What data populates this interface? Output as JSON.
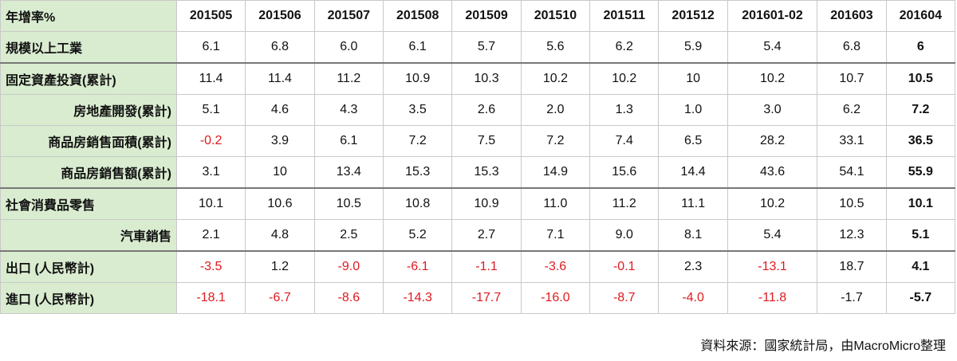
{
  "table": {
    "corner": "年增率%",
    "columns": [
      "201505",
      "201506",
      "201507",
      "201508",
      "201509",
      "201510",
      "201511",
      "201512",
      "201601-02",
      "201603",
      "201604"
    ],
    "rows": [
      {
        "label": "規模以上工業",
        "align": "left",
        "values": [
          "6.1",
          "6.8",
          "6.0",
          "6.1",
          "5.7",
          "5.6",
          "6.2",
          "5.9",
          "5.4",
          "6.8",
          "6"
        ],
        "neg": []
      },
      {
        "label": "固定資產投資(累計)",
        "align": "left",
        "group_top": true,
        "values": [
          "11.4",
          "11.4",
          "11.2",
          "10.9",
          "10.3",
          "10.2",
          "10.2",
          "10",
          "10.2",
          "10.7",
          "10.5"
        ],
        "neg": []
      },
      {
        "label": "房地產開發(累計)",
        "align": "sub",
        "values": [
          "5.1",
          "4.6",
          "4.3",
          "3.5",
          "2.6",
          "2.0",
          "1.3",
          "1.0",
          "3.0",
          "6.2",
          "7.2"
        ],
        "neg": []
      },
      {
        "label": "商品房銷售面積(累計)",
        "align": "sub",
        "values": [
          "-0.2",
          "3.9",
          "6.1",
          "7.2",
          "7.5",
          "7.2",
          "7.4",
          "6.5",
          "28.2",
          "33.1",
          "36.5"
        ],
        "neg": [
          0
        ]
      },
      {
        "label": "商品房銷售額(累計)",
        "align": "sub",
        "values": [
          "3.1",
          "10",
          "13.4",
          "15.3",
          "15.3",
          "14.9",
          "15.6",
          "14.4",
          "43.6",
          "54.1",
          "55.9"
        ],
        "neg": []
      },
      {
        "label": "社會消費品零售",
        "align": "left",
        "group_top": true,
        "values": [
          "10.1",
          "10.6",
          "10.5",
          "10.8",
          "10.9",
          "11.0",
          "11.2",
          "11.1",
          "10.2",
          "10.5",
          "10.1"
        ],
        "neg": []
      },
      {
        "label": "汽車銷售",
        "align": "sub",
        "values": [
          "2.1",
          "4.8",
          "2.5",
          "5.2",
          "2.7",
          "7.1",
          "9.0",
          "8.1",
          "5.4",
          "12.3",
          "5.1"
        ],
        "neg": []
      },
      {
        "label": "出口 (人民幣計)",
        "align": "left",
        "group_top": true,
        "values": [
          "-3.5",
          "1.2",
          "-9.0",
          "-6.1",
          "-1.1",
          "-3.6",
          "-0.1",
          "2.3",
          "-13.1",
          "18.7",
          "4.1"
        ],
        "neg": [
          0,
          2,
          3,
          4,
          5,
          6,
          8
        ]
      },
      {
        "label": "進口 (人民幣計)",
        "align": "left",
        "values": [
          "-18.1",
          "-6.7",
          "-8.6",
          "-14.3",
          "-17.7",
          "-16.0",
          "-8.7",
          "-4.0",
          "-11.8",
          "-1.7",
          "-5.7"
        ],
        "neg": [
          0,
          1,
          2,
          3,
          4,
          5,
          6,
          7,
          8
        ]
      }
    ]
  },
  "source": "資料來源：國家統計局，由MacroMicro整理",
  "colors": {
    "header_bg": "#d9ecd0",
    "negative": "#e0191e",
    "grid": "#c9c9c9"
  }
}
